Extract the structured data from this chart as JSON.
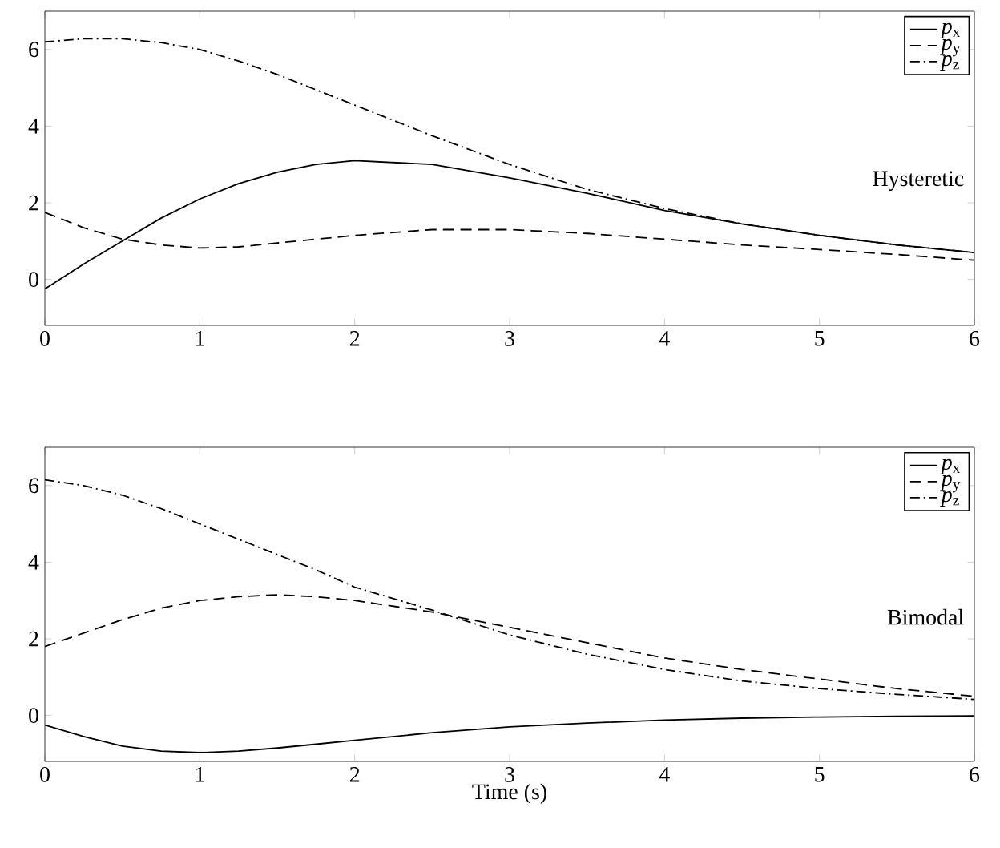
{
  "chart_data": [
    {
      "type": "line",
      "x": [
        0,
        0.25,
        0.5,
        0.75,
        1,
        1.25,
        1.5,
        1.75,
        2,
        2.5,
        3,
        3.5,
        4,
        4.5,
        5,
        5.5,
        6
      ],
      "series": [
        {
          "name": "*p*$_{x}$",
          "color": "#000000",
          "line_style": "solid",
          "values": [
            -0.25,
            0.4,
            1.0,
            1.6,
            2.1,
            2.5,
            2.8,
            3.0,
            3.1,
            3.0,
            2.65,
            2.25,
            1.8,
            1.45,
            1.15,
            0.9,
            0.7
          ]
        },
        {
          "name": "*p*$_{y}$",
          "color": "#000000",
          "line_style": "dashed",
          "values": [
            1.75,
            1.35,
            1.05,
            0.9,
            0.82,
            0.85,
            0.95,
            1.05,
            1.15,
            1.3,
            1.3,
            1.2,
            1.05,
            0.9,
            0.78,
            0.65,
            0.5
          ]
        },
        {
          "name": "*p*$_{z}$",
          "color": "#000000",
          "line_style": "dashdot",
          "values": [
            6.2,
            6.28,
            6.28,
            6.18,
            6.0,
            5.7,
            5.35,
            4.95,
            4.55,
            3.75,
            3.0,
            2.35,
            1.85,
            1.45,
            1.15,
            0.9,
            0.7
          ]
        }
      ],
      "xlim": [
        0,
        6
      ],
      "ylim": [
        -1.2,
        7
      ],
      "xticks": [
        0,
        1,
        2,
        3,
        4,
        5,
        6
      ],
      "yticks": [
        0,
        2,
        4,
        6
      ],
      "legend": "top right",
      "annotations": [
        "Hysteretic"
      ]
    },
    {
      "type": "line",
      "x": [
        0,
        0.25,
        0.5,
        0.75,
        1,
        1.25,
        1.5,
        1.75,
        2,
        2.5,
        3,
        3.5,
        4,
        4.5,
        5,
        5.5,
        6
      ],
      "series": [
        {
          "name": "*p*$_{x}$",
          "color": "#000000",
          "line_style": "solid",
          "values": [
            -0.25,
            -0.55,
            -0.8,
            -0.93,
            -0.97,
            -0.93,
            -0.85,
            -0.75,
            -0.65,
            -0.45,
            -0.3,
            -0.2,
            -0.12,
            -0.07,
            -0.04,
            -0.02,
            -0.01
          ]
        },
        {
          "name": "*p*$_{y}$",
          "color": "#000000",
          "line_style": "dashed",
          "values": [
            1.8,
            2.15,
            2.5,
            2.8,
            3.0,
            3.1,
            3.15,
            3.1,
            3.0,
            2.7,
            2.3,
            1.9,
            1.5,
            1.2,
            0.95,
            0.7,
            0.5
          ]
        },
        {
          "name": "*p*$_{z}$",
          "color": "#000000",
          "line_style": "dashdot",
          "values": [
            6.15,
            6.0,
            5.75,
            5.4,
            5.0,
            4.6,
            4.2,
            3.8,
            3.35,
            2.75,
            2.1,
            1.6,
            1.2,
            0.9,
            0.7,
            0.55,
            0.42
          ]
        }
      ],
      "xlim": [
        0,
        6
      ],
      "ylim": [
        -1.2,
        7
      ],
      "xticks": [
        0,
        1,
        2,
        3,
        4,
        5,
        6
      ],
      "yticks": [
        0,
        2,
        4,
        6
      ],
      "legend": "top right",
      "xlabel": "Time (s)",
      "annotations": [
        "Bimodal"
      ]
    }
  ]
}
